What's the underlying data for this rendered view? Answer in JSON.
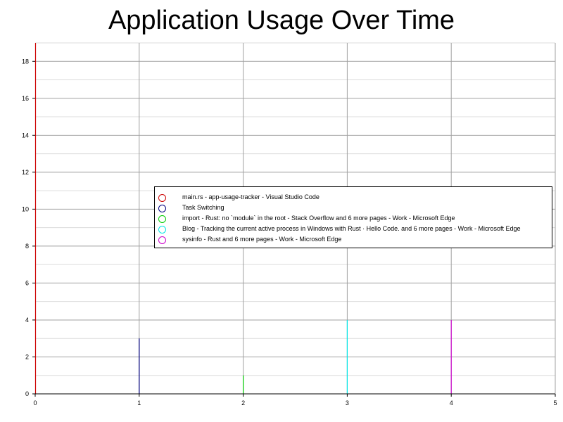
{
  "chart_data": {
    "type": "bar",
    "title": "Application Usage Over Time",
    "xlabel": "",
    "ylabel": "",
    "xlim": [
      0,
      5
    ],
    "ylim": [
      0,
      19
    ],
    "xticks": [
      0,
      1,
      2,
      3,
      4,
      5
    ],
    "yticks": [
      0,
      2,
      4,
      6,
      8,
      10,
      12,
      14,
      16,
      18
    ],
    "grid": true,
    "legend_position": "center-right",
    "series": [
      {
        "name": "main.rs - app-usage-tracker - Visual Studio Code",
        "color": "#cc0000",
        "x": [
          0
        ],
        "values": [
          19
        ]
      },
      {
        "name": "Task Switching",
        "color": "#000080",
        "x": [
          1
        ],
        "values": [
          3
        ]
      },
      {
        "name": "import - Rust: no `module` in the root - Stack Overflow and 6 more pages - Work - Microsoft Edge",
        "color": "#00cc00",
        "x": [
          2
        ],
        "values": [
          1
        ]
      },
      {
        "name": "Blog - Tracking the current active process in Windows with Rust · Hello Code. and 6 more pages - Work - Microsoft Edge",
        "color": "#00e5e5",
        "x": [
          3
        ],
        "values": [
          4
        ]
      },
      {
        "name": "sysinfo - Rust and 6 more pages - Work - Microsoft Edge",
        "color": "#cc00cc",
        "x": [
          4
        ],
        "values": [
          4
        ]
      }
    ]
  }
}
